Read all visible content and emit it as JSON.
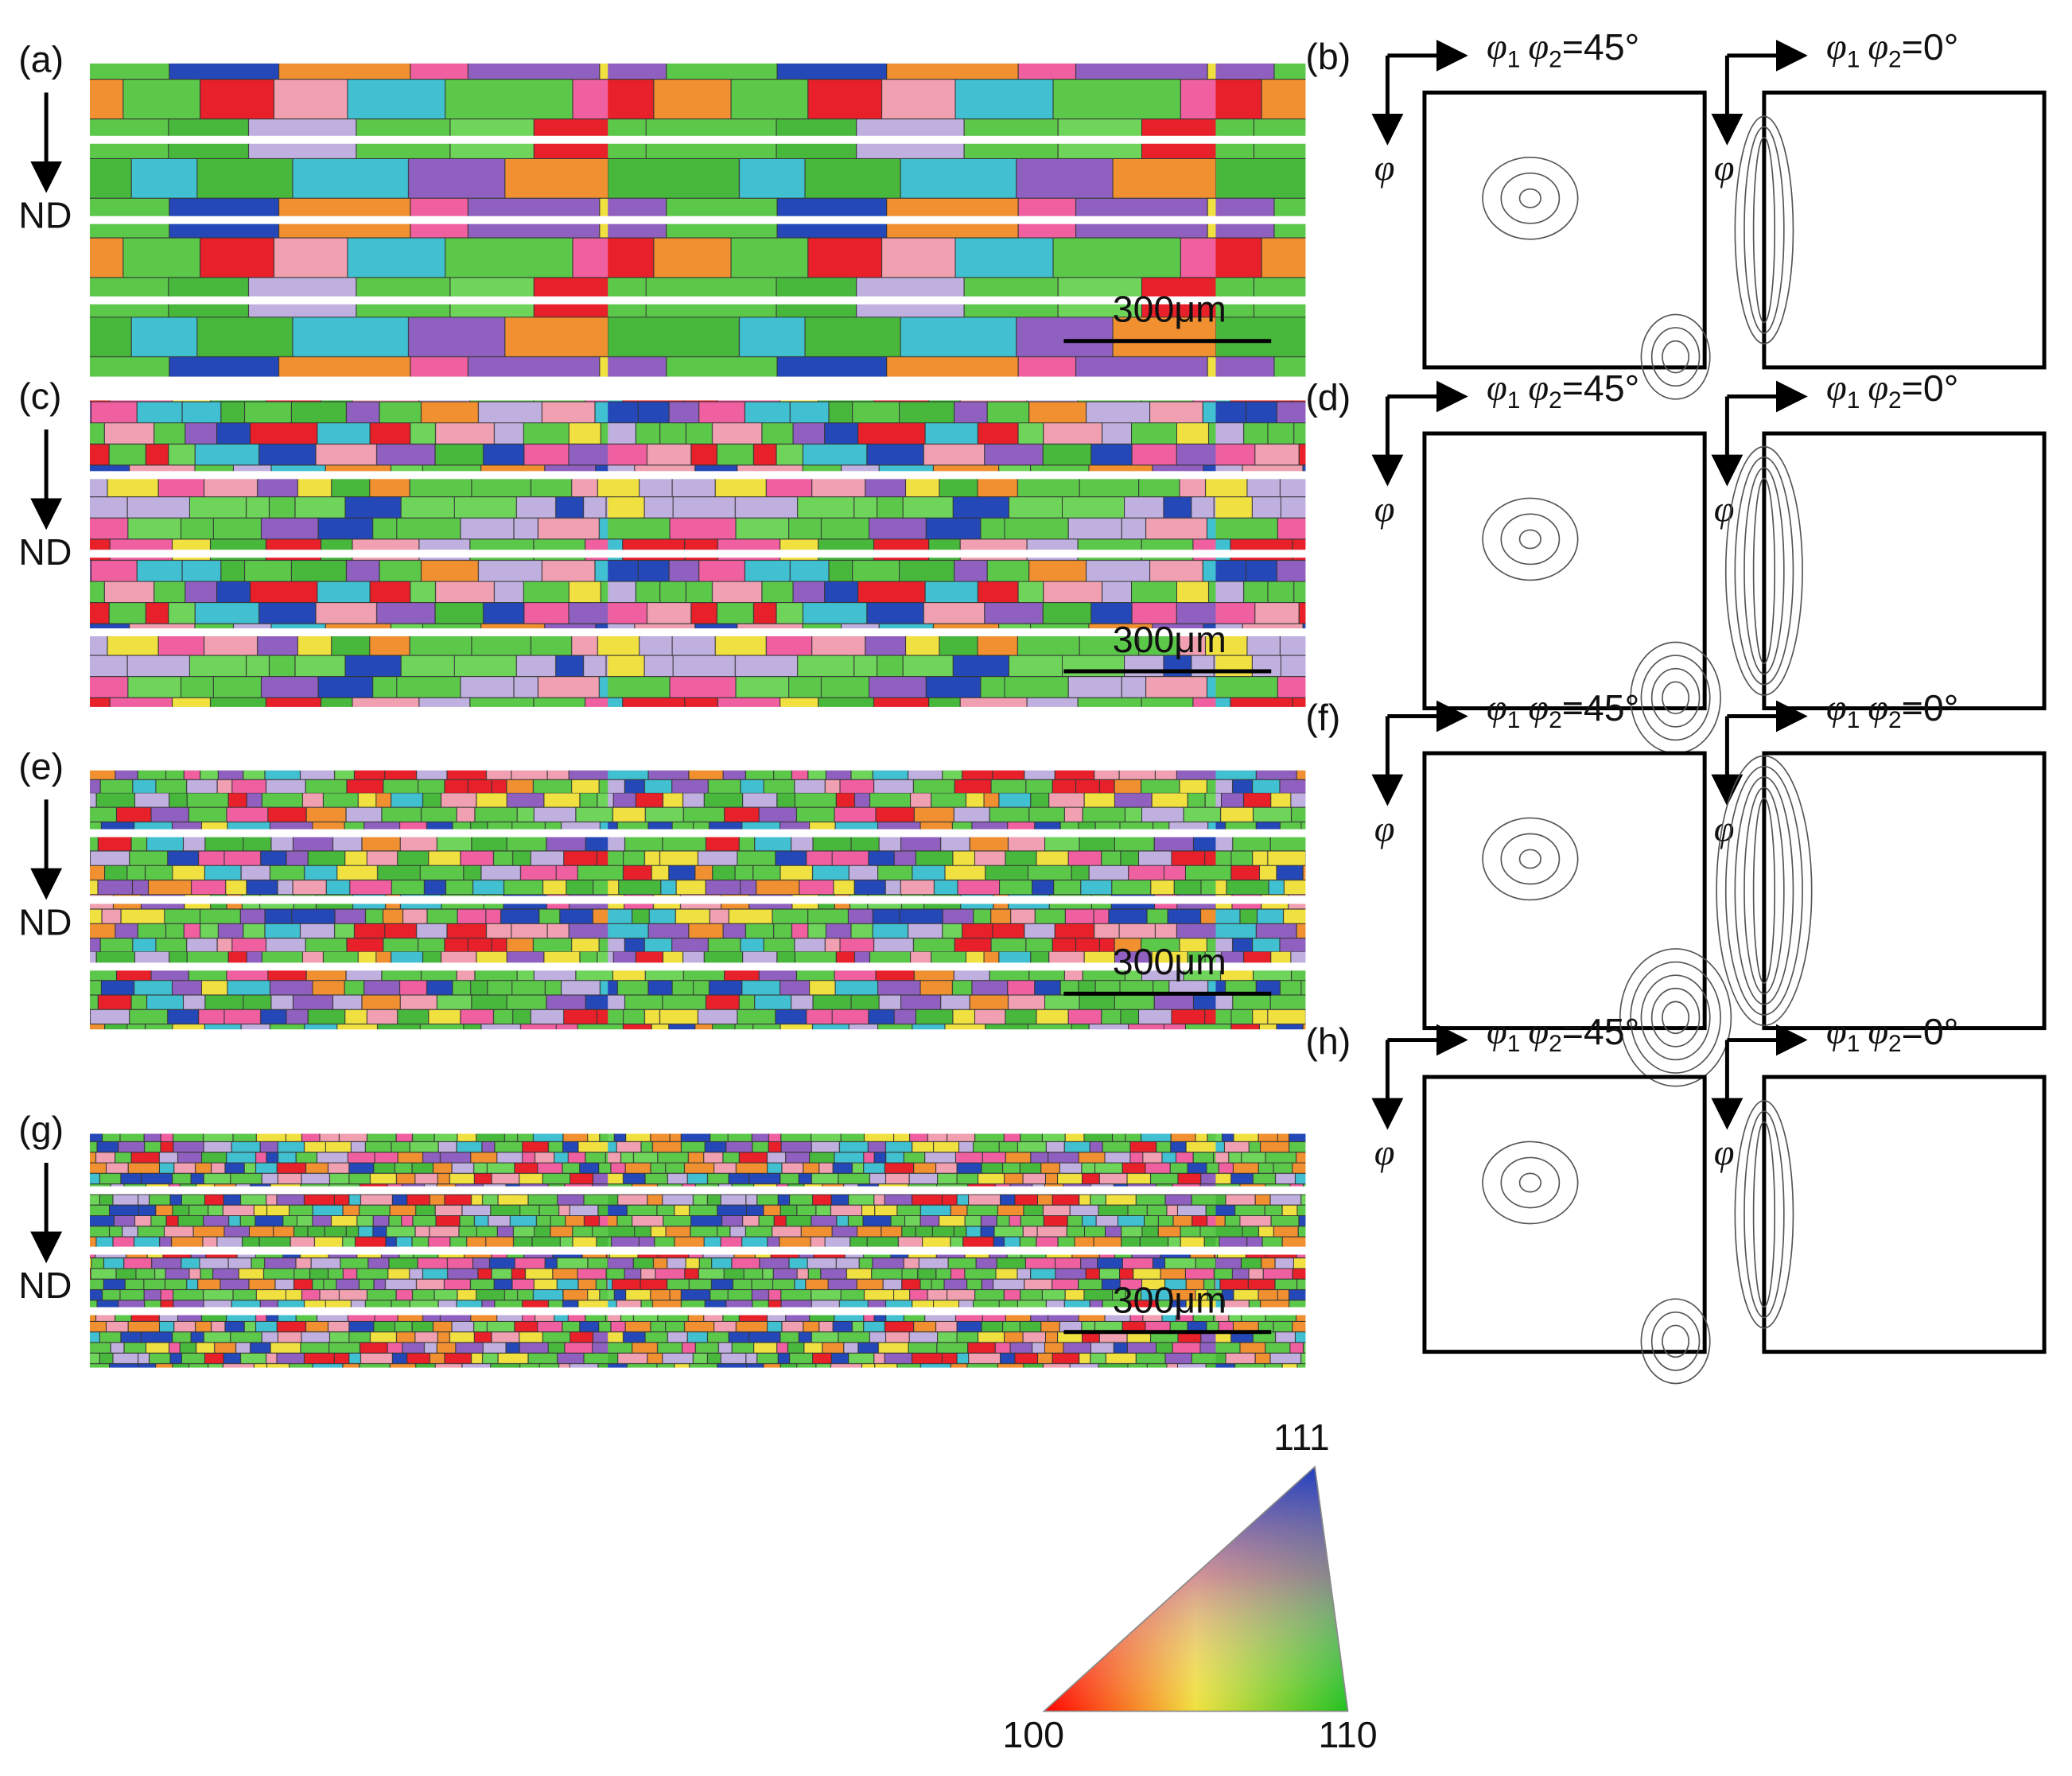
{
  "maps": [
    {
      "label": "(a)",
      "direction": "ND",
      "scale_bar": "300μm"
    },
    {
      "label": "(c)",
      "direction": "ND",
      "scale_bar": "300μm"
    },
    {
      "label": "(e)",
      "direction": "ND",
      "scale_bar": "300μm"
    },
    {
      "label": "(g)",
      "direction": "ND",
      "scale_bar": "300μm"
    }
  ],
  "odfs": [
    {
      "label": "(b)",
      "sections": [
        {
          "x_label": [
            "φ",
            "1",
            "φ",
            "2",
            "=45°"
          ],
          "y_label": "φ"
        },
        {
          "x_label": [
            "φ",
            "1",
            "φ",
            "2",
            "=0°"
          ],
          "y_label": "φ"
        }
      ]
    },
    {
      "label": "(d)",
      "sections": [
        {
          "x_label": [
            "φ",
            "1",
            "φ",
            "2",
            "=45°"
          ],
          "y_label": "φ"
        },
        {
          "x_label": [
            "φ",
            "1",
            "φ",
            "2",
            "=0°"
          ],
          "y_label": "φ"
        }
      ]
    },
    {
      "label": "(f)",
      "sections": [
        {
          "x_label": [
            "φ",
            "1",
            "φ",
            "2",
            "=45°"
          ],
          "y_label": "φ"
        },
        {
          "x_label": [
            "φ",
            "1",
            "φ",
            "2",
            "=0°"
          ],
          "y_label": "φ"
        }
      ]
    },
    {
      "label": "(h)",
      "sections": [
        {
          "x_label": [
            "φ",
            "1",
            "φ",
            "2",
            "=45°"
          ],
          "y_label": "φ"
        },
        {
          "x_label": [
            "φ",
            "1",
            "φ",
            "2",
            "=0°"
          ],
          "y_label": "φ"
        }
      ]
    }
  ],
  "color_key": {
    "top": "111",
    "left": "100",
    "right": "110"
  }
}
